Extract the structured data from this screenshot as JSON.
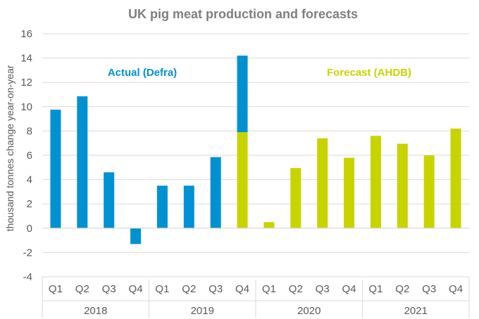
{
  "chart_data": {
    "type": "bar",
    "stacked": true,
    "title": "UK pig meat production and forecasts",
    "xlabel": "",
    "ylabel": "thousand tonnes change year-on-year",
    "ylim": [
      -4,
      16
    ],
    "yticks": [
      -4,
      -2,
      0,
      2,
      4,
      6,
      8,
      10,
      12,
      14,
      16
    ],
    "grid": true,
    "categories": [
      "Q1",
      "Q2",
      "Q3",
      "Q4",
      "Q1",
      "Q2",
      "Q3",
      "Q4",
      "Q1",
      "Q2",
      "Q3",
      "Q4",
      "Q1",
      "Q2",
      "Q3",
      "Q4"
    ],
    "groups": [
      {
        "label": "2018",
        "count": 4
      },
      {
        "label": "2019",
        "count": 4
      },
      {
        "label": "2020",
        "count": 4
      },
      {
        "label": "2021",
        "count": 4
      }
    ],
    "series": [
      {
        "name": "Forecast (AHDB)",
        "color": "#c8d400",
        "values": [
          0,
          0,
          0,
          0,
          0,
          0,
          0,
          7.9,
          0.5,
          4.95,
          7.4,
          5.8,
          7.6,
          6.95,
          6.0,
          8.2
        ]
      },
      {
        "name": "Actual (Defra)",
        "color": "#0091d2",
        "values": [
          9.75,
          10.85,
          4.6,
          -1.3,
          3.5,
          3.5,
          5.85,
          6.3,
          0,
          0,
          0,
          0,
          0,
          0,
          0,
          0
        ]
      }
    ],
    "annotations": [
      {
        "text": "Actual (Defra)",
        "color": "#0091d2"
      },
      {
        "text": "Forecast (AHDB)",
        "color": "#c8d400"
      }
    ]
  }
}
